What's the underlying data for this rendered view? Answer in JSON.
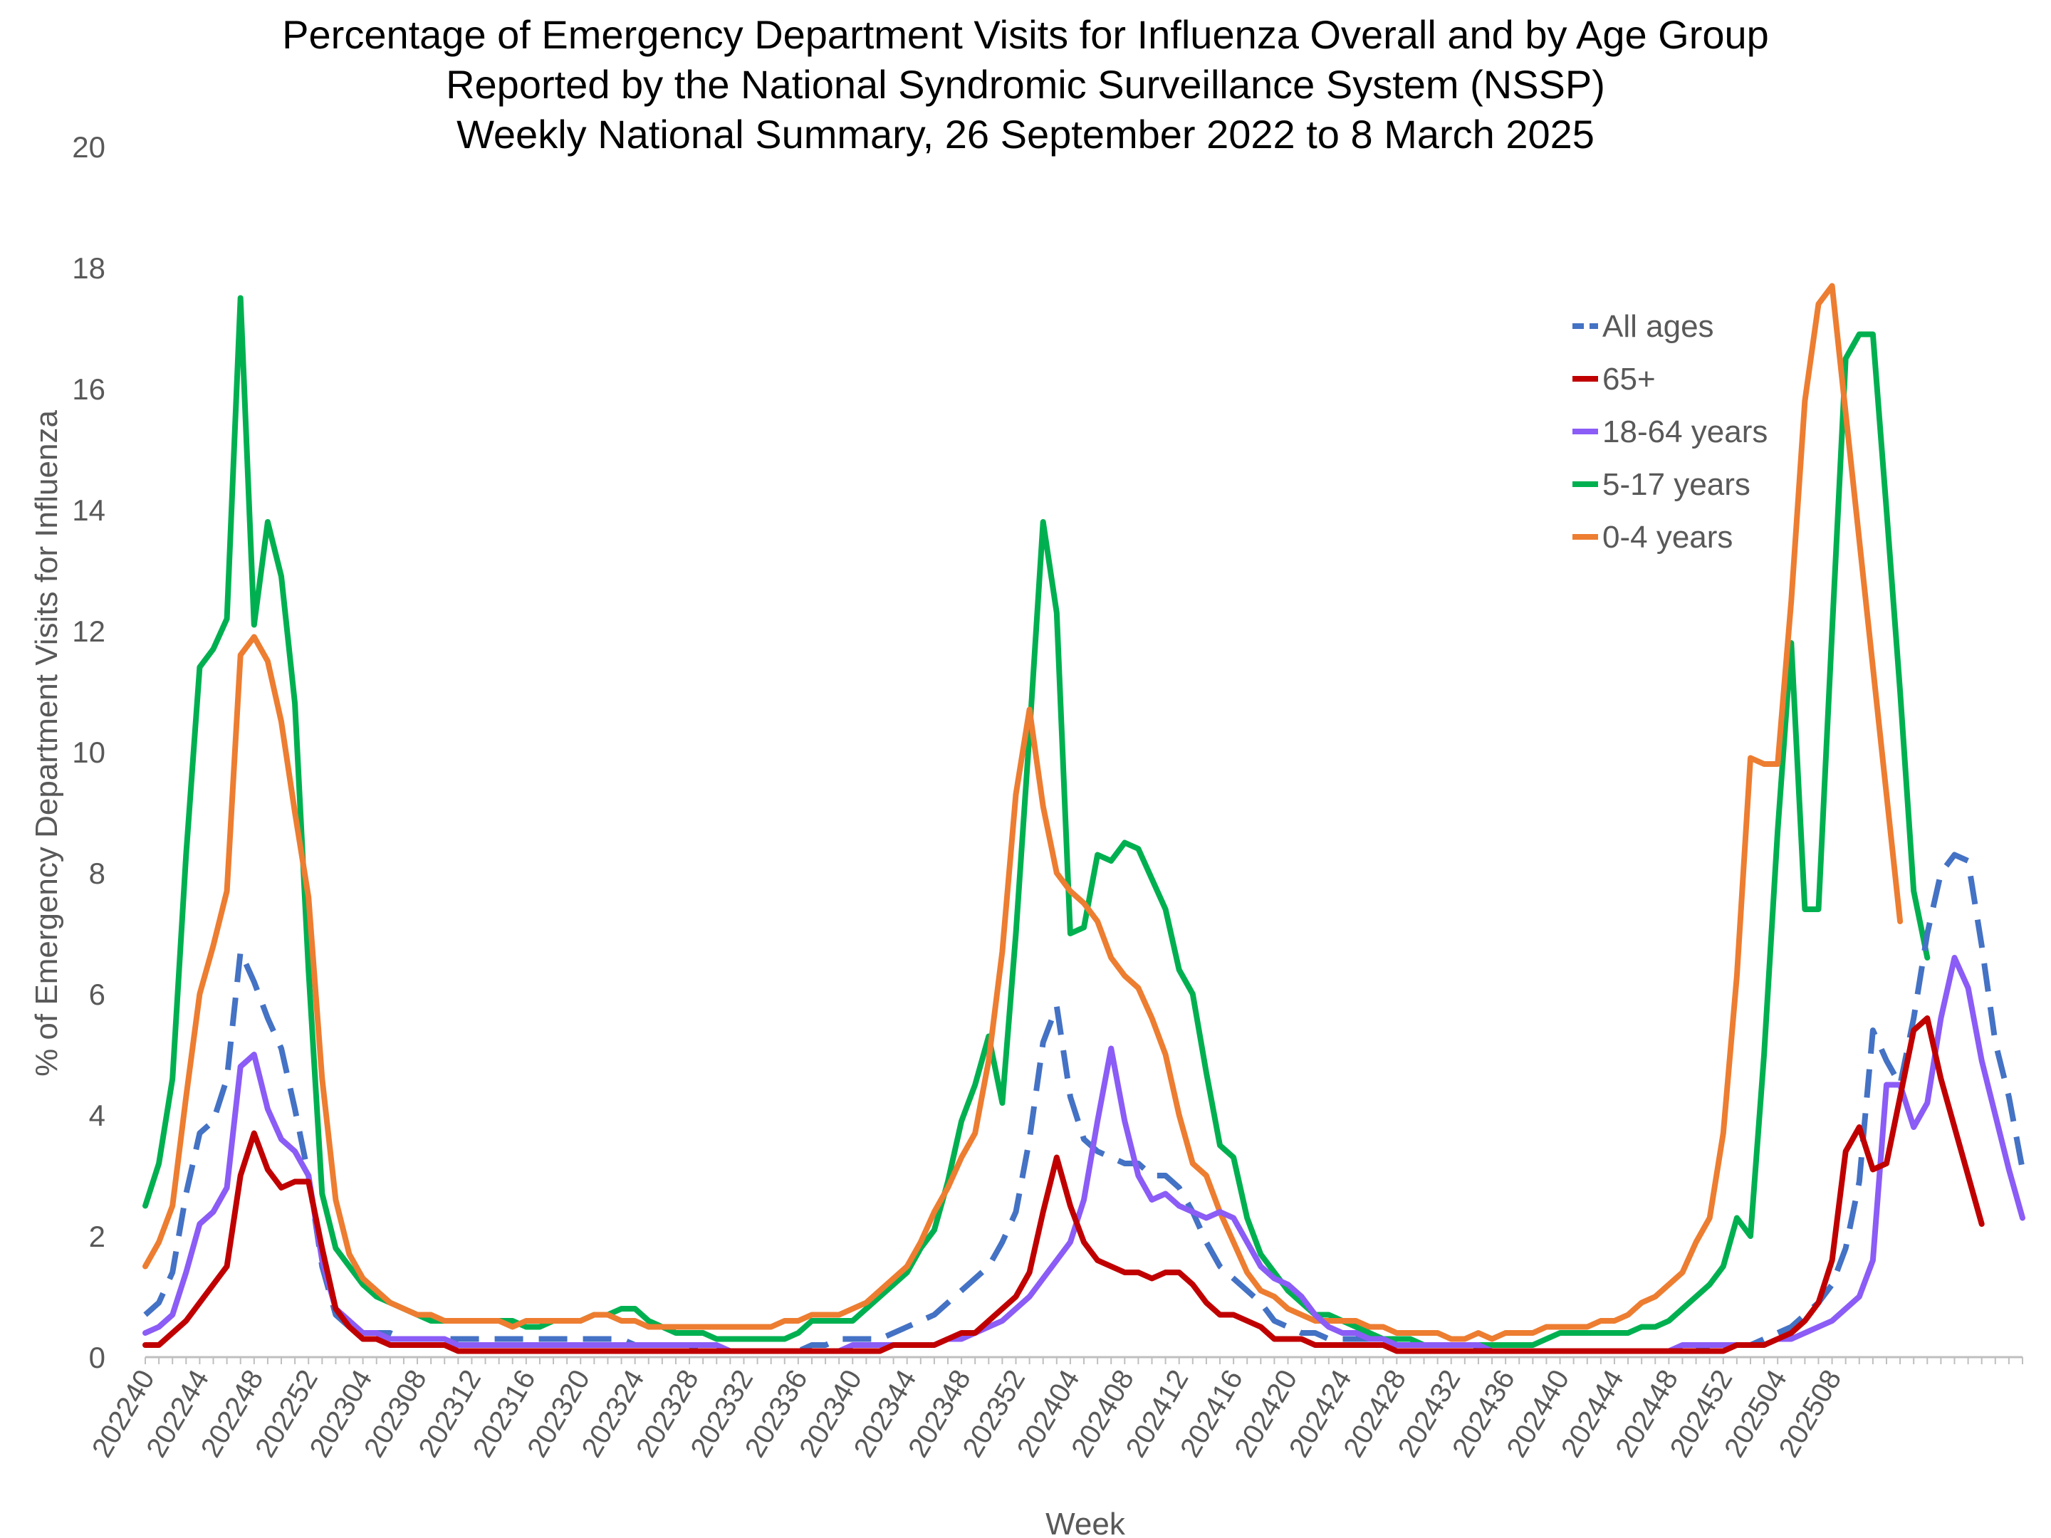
{
  "chart_data": {
    "type": "line",
    "title": [
      "Percentage of Emergency Department Visits for Influenza Overall and by Age Group",
      "Reported by the National Syndromic Surveillance System (NSSP)",
      "Weekly National Summary, 26 September 2022 to 8 March 2025"
    ],
    "xlabel": "Week",
    "ylabel": "% of Emergency Department Visits for Influenza",
    "ylim": [
      0,
      20
    ],
    "yticks": [
      0,
      2,
      4,
      6,
      8,
      10,
      12,
      14,
      16,
      18,
      20
    ],
    "grid": false,
    "legend_position": "top-right",
    "x_tick_labels": [
      "202240",
      "202244",
      "202248",
      "202252",
      "202304",
      "202308",
      "202312",
      "202316",
      "202320",
      "202324",
      "202328",
      "202332",
      "202336",
      "202340",
      "202344",
      "202348",
      "202352",
      "202404",
      "202408",
      "202412",
      "202416",
      "202420",
      "202424",
      "202428",
      "202432",
      "202436",
      "202440",
      "202444",
      "202448",
      "202452",
      "202504",
      "202508"
    ],
    "series": [
      {
        "name": "All ages",
        "color": "#4472C4",
        "dash": true,
        "values": [
          0.7,
          0.9,
          1.4,
          2.7,
          3.7,
          3.9,
          4.6,
          6.7,
          6.2,
          5.6,
          5.1,
          4.1,
          3.0,
          1.5,
          0.7,
          0.5,
          0.4,
          0.4,
          0.4,
          0.3,
          0.3,
          0.3,
          0.3,
          0.3,
          0.3,
          0.3,
          0.3,
          0.3,
          0.3,
          0.3,
          0.3,
          0.3,
          0.3,
          0.3,
          0.3,
          0.3,
          0.2,
          0.2,
          0.2,
          0.2,
          0.2,
          0.1,
          0.1,
          0.1,
          0.1,
          0.1,
          0.1,
          0.1,
          0.1,
          0.2,
          0.2,
          0.3,
          0.3,
          0.3,
          0.3,
          0.4,
          0.5,
          0.6,
          0.7,
          0.9,
          1.1,
          1.3,
          1.5,
          1.9,
          2.4,
          3.6,
          5.2,
          5.8,
          4.3,
          3.6,
          3.4,
          3.3,
          3.2,
          3.2,
          3.0,
          3.0,
          2.8,
          2.4,
          1.9,
          1.5,
          1.3,
          1.1,
          0.9,
          0.6,
          0.5,
          0.4,
          0.4,
          0.3,
          0.3,
          0.3,
          0.3,
          0.3,
          0.2,
          0.2,
          0.2,
          0.2,
          0.2,
          0.2,
          0.1,
          0.1,
          0.1,
          0.1,
          0.1,
          0.1,
          0.1,
          0.1,
          0.1,
          0.1,
          0.1,
          0.1,
          0.1,
          0.1,
          0.1,
          0.1,
          0.1,
          0.2,
          0.2,
          0.2,
          0.2,
          0.3,
          0.4,
          0.5,
          0.7,
          0.9,
          1.2,
          1.8,
          2.9,
          5.4,
          4.9,
          4.5,
          5.6,
          7.0,
          8.0,
          8.3,
          8.2,
          6.8,
          5.2,
          4.3,
          3.1
        ]
      },
      {
        "name": "65+",
        "color": "#C00000",
        "dash": false,
        "values": [
          0.2,
          0.2,
          0.4,
          0.6,
          0.9,
          1.2,
          1.5,
          3.0,
          3.7,
          3.1,
          2.8,
          2.9,
          2.9,
          1.8,
          0.8,
          0.5,
          0.3,
          0.3,
          0.2,
          0.2,
          0.2,
          0.2,
          0.2,
          0.1,
          0.1,
          0.1,
          0.1,
          0.1,
          0.1,
          0.1,
          0.1,
          0.1,
          0.1,
          0.1,
          0.1,
          0.1,
          0.1,
          0.1,
          0.1,
          0.1,
          0.1,
          0.1,
          0.1,
          0.1,
          0.1,
          0.1,
          0.1,
          0.1,
          0.1,
          0.1,
          0.1,
          0.1,
          0.1,
          0.1,
          0.1,
          0.2,
          0.2,
          0.2,
          0.2,
          0.3,
          0.4,
          0.4,
          0.6,
          0.8,
          1.0,
          1.4,
          2.4,
          3.3,
          2.5,
          1.9,
          1.6,
          1.5,
          1.4,
          1.4,
          1.3,
          1.4,
          1.4,
          1.2,
          0.9,
          0.7,
          0.7,
          0.6,
          0.5,
          0.3,
          0.3,
          0.3,
          0.2,
          0.2,
          0.2,
          0.2,
          0.2,
          0.2,
          0.1,
          0.1,
          0.1,
          0.1,
          0.1,
          0.1,
          0.1,
          0.1,
          0.1,
          0.1,
          0.1,
          0.1,
          0.1,
          0.1,
          0.1,
          0.1,
          0.1,
          0.1,
          0.1,
          0.1,
          0.1,
          0.1,
          0.1,
          0.1,
          0.1,
          0.2,
          0.2,
          0.2,
          0.3,
          0.4,
          0.6,
          0.9,
          1.6,
          3.4,
          3.8,
          3.1,
          3.2,
          4.3,
          5.4,
          5.6,
          4.6,
          3.8,
          3.0,
          2.2
        ]
      },
      {
        "name": "18-64 years",
        "color": "#8B5CF6",
        "dash": false,
        "values": [
          0.4,
          0.5,
          0.7,
          1.4,
          2.2,
          2.4,
          2.8,
          4.8,
          5.0,
          4.1,
          3.6,
          3.4,
          3.0,
          1.6,
          0.8,
          0.6,
          0.4,
          0.4,
          0.3,
          0.3,
          0.3,
          0.3,
          0.3,
          0.2,
          0.2,
          0.2,
          0.2,
          0.2,
          0.2,
          0.2,
          0.2,
          0.2,
          0.2,
          0.2,
          0.2,
          0.2,
          0.2,
          0.2,
          0.2,
          0.2,
          0.2,
          0.2,
          0.2,
          0.1,
          0.1,
          0.1,
          0.1,
          0.1,
          0.1,
          0.1,
          0.1,
          0.1,
          0.2,
          0.2,
          0.2,
          0.2,
          0.2,
          0.2,
          0.2,
          0.3,
          0.3,
          0.4,
          0.5,
          0.6,
          0.8,
          1.0,
          1.3,
          1.6,
          1.9,
          2.6,
          3.9,
          5.1,
          3.9,
          3.0,
          2.6,
          2.7,
          2.5,
          2.4,
          2.3,
          2.4,
          2.3,
          1.9,
          1.5,
          1.3,
          1.2,
          1.0,
          0.7,
          0.5,
          0.4,
          0.4,
          0.3,
          0.3,
          0.2,
          0.2,
          0.2,
          0.2,
          0.2,
          0.2,
          0.2,
          0.1,
          0.1,
          0.1,
          0.1,
          0.1,
          0.1,
          0.1,
          0.1,
          0.1,
          0.1,
          0.1,
          0.1,
          0.1,
          0.1,
          0.2,
          0.2,
          0.2,
          0.2,
          0.2,
          0.2,
          0.2,
          0.3,
          0.3,
          0.4,
          0.5,
          0.6,
          0.8,
          1.0,
          1.6,
          4.5,
          4.5,
          3.8,
          4.2,
          5.6,
          6.6,
          6.1,
          4.9,
          4.0,
          3.1,
          2.3
        ]
      },
      {
        "name": "5-17 years",
        "color": "#00B050",
        "dash": false,
        "values": [
          2.5,
          3.2,
          4.6,
          8.3,
          11.4,
          11.7,
          12.2,
          17.5,
          12.1,
          13.8,
          12.9,
          10.8,
          6.4,
          2.7,
          1.8,
          1.5,
          1.2,
          1.0,
          0.9,
          0.8,
          0.7,
          0.6,
          0.6,
          0.6,
          0.6,
          0.6,
          0.6,
          0.6,
          0.5,
          0.5,
          0.6,
          0.6,
          0.6,
          0.7,
          0.7,
          0.8,
          0.8,
          0.6,
          0.5,
          0.4,
          0.4,
          0.4,
          0.3,
          0.3,
          0.3,
          0.3,
          0.3,
          0.3,
          0.4,
          0.6,
          0.6,
          0.6,
          0.6,
          0.8,
          1.0,
          1.2,
          1.4,
          1.8,
          2.1,
          2.9,
          3.9,
          4.5,
          5.3,
          4.2,
          7.0,
          10.3,
          13.8,
          12.3,
          7.0,
          7.1,
          8.3,
          8.2,
          8.5,
          8.4,
          7.9,
          7.4,
          6.4,
          6.0,
          4.7,
          3.5,
          3.3,
          2.3,
          1.7,
          1.4,
          1.1,
          0.9,
          0.7,
          0.7,
          0.6,
          0.5,
          0.4,
          0.3,
          0.3,
          0.3,
          0.2,
          0.2,
          0.2,
          0.2,
          0.2,
          0.2,
          0.2,
          0.2,
          0.2,
          0.3,
          0.4,
          0.4,
          0.4,
          0.4,
          0.4,
          0.4,
          0.5,
          0.5,
          0.6,
          0.8,
          1.0,
          1.2,
          1.5,
          2.3,
          2.0,
          5.0,
          8.7,
          11.8,
          7.4,
          7.4,
          12.0,
          16.5,
          16.9,
          16.9,
          14.0,
          11.0,
          7.7,
          6.6
        ]
      },
      {
        "name": "0-4 years",
        "color": "#ED7D31",
        "dash": false,
        "values": [
          1.5,
          1.9,
          2.5,
          4.3,
          6.0,
          6.8,
          7.7,
          11.6,
          11.9,
          11.5,
          10.5,
          9.0,
          7.6,
          4.6,
          2.6,
          1.7,
          1.3,
          1.1,
          0.9,
          0.8,
          0.7,
          0.7,
          0.6,
          0.6,
          0.6,
          0.6,
          0.6,
          0.5,
          0.6,
          0.6,
          0.6,
          0.6,
          0.6,
          0.7,
          0.7,
          0.6,
          0.6,
          0.5,
          0.5,
          0.5,
          0.5,
          0.5,
          0.5,
          0.5,
          0.5,
          0.5,
          0.5,
          0.6,
          0.6,
          0.7,
          0.7,
          0.7,
          0.8,
          0.9,
          1.1,
          1.3,
          1.5,
          1.9,
          2.4,
          2.8,
          3.3,
          3.7,
          4.9,
          6.7,
          9.3,
          10.7,
          9.1,
          8.0,
          7.7,
          7.5,
          7.2,
          6.6,
          6.3,
          6.1,
          5.6,
          5.0,
          4.0,
          3.2,
          3.0,
          2.4,
          1.9,
          1.4,
          1.1,
          1.0,
          0.8,
          0.7,
          0.6,
          0.6,
          0.6,
          0.6,
          0.5,
          0.5,
          0.4,
          0.4,
          0.4,
          0.4,
          0.3,
          0.3,
          0.4,
          0.3,
          0.4,
          0.4,
          0.4,
          0.5,
          0.5,
          0.5,
          0.5,
          0.6,
          0.6,
          0.7,
          0.9,
          1.0,
          1.2,
          1.4,
          1.9,
          2.3,
          3.7,
          6.3,
          9.9,
          9.8,
          9.8,
          12.5,
          15.8,
          17.4,
          17.7,
          15.6,
          13.5,
          11.4,
          9.3,
          7.2
        ]
      }
    ]
  }
}
